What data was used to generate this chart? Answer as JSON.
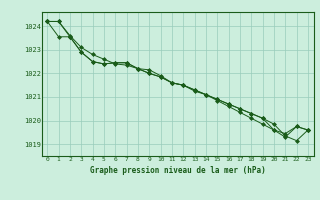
{
  "title": "Graphe pression niveau de la mer (hPa)",
  "bg_color": "#cceedd",
  "plot_bg_color": "#cceedd",
  "grid_color": "#99ccbb",
  "line_color": "#1a5c1a",
  "marker_color": "#1a5c1a",
  "xlim": [
    -0.5,
    23.5
  ],
  "ylim": [
    1018.5,
    1024.6
  ],
  "yticks": [
    1019,
    1020,
    1021,
    1022,
    1023,
    1024
  ],
  "xticks": [
    0,
    1,
    2,
    3,
    4,
    5,
    6,
    7,
    8,
    9,
    10,
    11,
    12,
    13,
    14,
    15,
    16,
    17,
    18,
    19,
    20,
    21,
    22,
    23
  ],
  "series1": [
    1024.2,
    1024.2,
    1023.6,
    1023.1,
    1022.8,
    1022.6,
    1022.4,
    1022.35,
    1022.2,
    1022.15,
    1021.9,
    1021.6,
    1021.5,
    1021.25,
    1021.1,
    1020.85,
    1020.6,
    1020.35,
    1020.1,
    1019.85,
    1019.6,
    1019.3,
    1019.75,
    1019.6
  ],
  "series2": [
    1024.2,
    1024.2,
    1023.55,
    1022.9,
    1022.5,
    1022.4,
    1022.45,
    1022.45,
    1022.2,
    1022.0,
    1021.85,
    1021.6,
    1021.5,
    1021.3,
    1021.1,
    1020.9,
    1020.7,
    1020.5,
    1020.3,
    1020.1,
    1019.85,
    1019.35,
    1019.15,
    1019.6
  ],
  "series3": [
    1024.2,
    1023.55,
    1023.55,
    1022.9,
    1022.5,
    1022.4,
    1022.45,
    1022.45,
    1022.2,
    1022.0,
    1021.85,
    1021.6,
    1021.5,
    1021.3,
    1021.1,
    1020.9,
    1020.7,
    1020.5,
    1020.3,
    1020.1,
    1019.6,
    1019.45,
    1019.75,
    1019.6
  ]
}
